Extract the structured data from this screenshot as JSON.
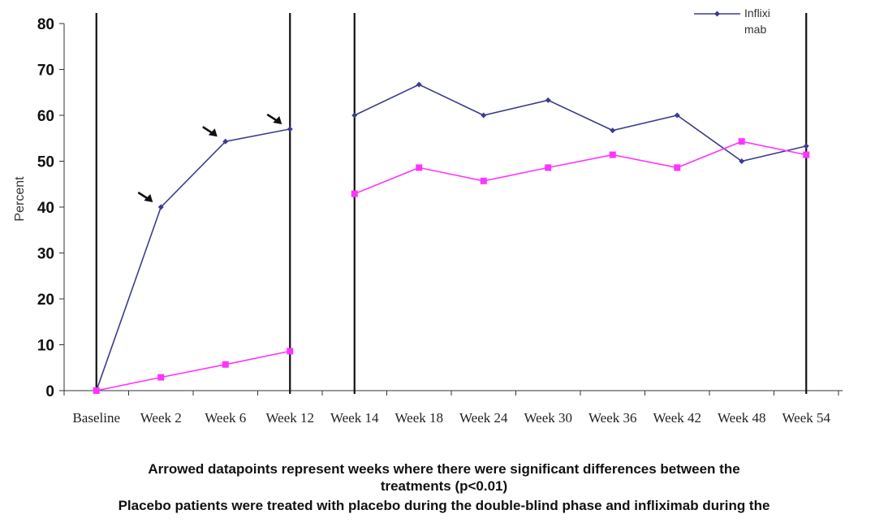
{
  "chart_data": {
    "type": "line",
    "title": "",
    "xlabel": "",
    "ylabel": "Percent",
    "ylim": [
      0,
      80
    ],
    "yticks": [
      0,
      10,
      20,
      30,
      40,
      50,
      60,
      70,
      80
    ],
    "categories": [
      "Baseline",
      "Week 2",
      "Week 6",
      "Week 12",
      "Week 14",
      "Week 18",
      "Week 24",
      "Week 30",
      "Week 36",
      "Week 42",
      "Week 48",
      "Week 54"
    ],
    "series": [
      {
        "name": "Infliximab",
        "legend_label_lines": [
          "Inflixi",
          "mab"
        ],
        "color": "#3b3b8f",
        "marker": "diamond",
        "segments": [
          {
            "x": [
              0,
              1,
              2,
              3
            ],
            "y": [
              0,
              40,
              54.3,
              57
            ]
          },
          {
            "x": [
              4,
              5,
              6,
              7,
              8,
              9,
              10,
              11
            ],
            "y": [
              60,
              66.7,
              60,
              63.3,
              56.7,
              60,
              50,
              53.3
            ]
          }
        ]
      },
      {
        "name": "Placebo",
        "color": "#ff33ff",
        "marker": "square",
        "segments": [
          {
            "x": [
              0,
              1,
              2,
              3
            ],
            "y": [
              0,
              2.9,
              5.7,
              8.6
            ]
          },
          {
            "x": [
              4,
              5,
              6,
              7,
              8,
              9,
              10,
              11
            ],
            "y": [
              42.9,
              48.6,
              45.7,
              48.6,
              51.4,
              48.6,
              54.3,
              51.4
            ]
          }
        ]
      }
    ],
    "phase_dividers_x": [
      0,
      3,
      4,
      11
    ],
    "arrowed_points_x": [
      1,
      2,
      3
    ],
    "grid": false,
    "legend_position": "top-right"
  },
  "captions": [
    "Arrowed datapoints represent weeks where there were significant differences between the",
    "treatments (p<0.01)",
    "Placebo patients were treated with placebo during the double-blind phase and infliximab during the"
  ]
}
